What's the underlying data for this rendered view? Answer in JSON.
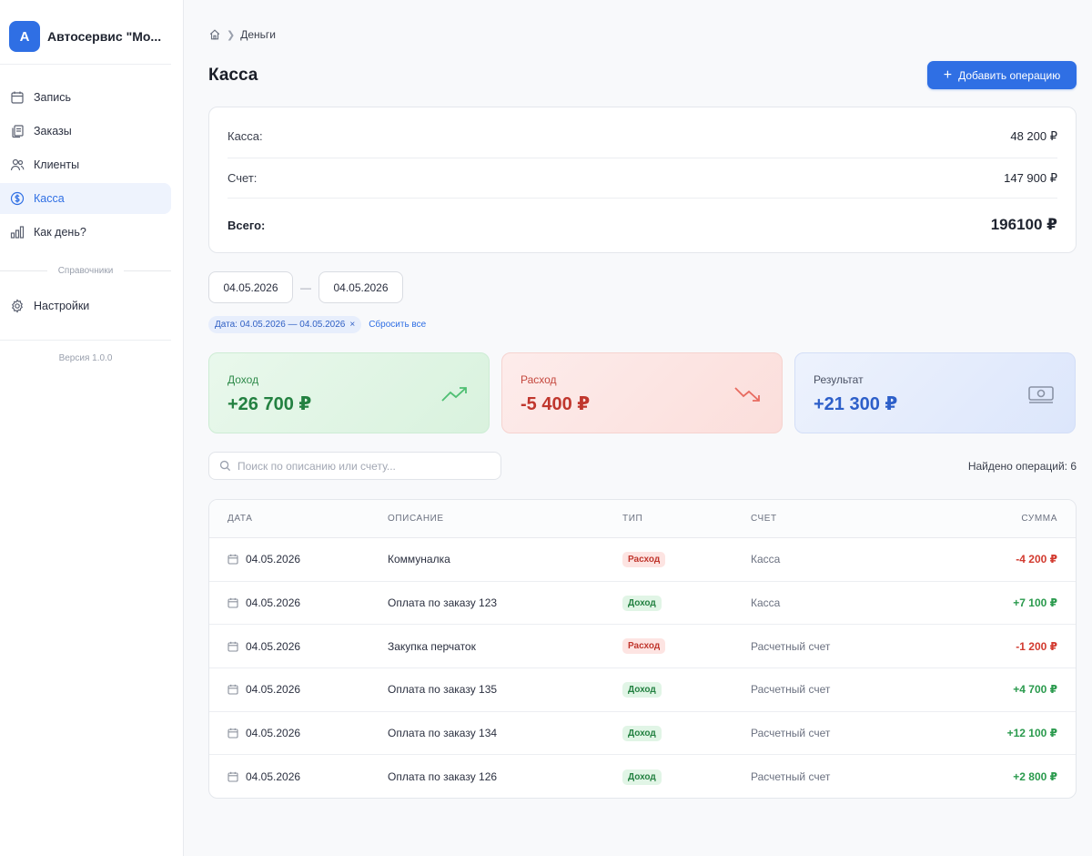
{
  "sidebar": {
    "logo_letter": "A",
    "company": "Автосервис \"Мо...",
    "items": [
      {
        "label": "Запись",
        "icon": "calendar-icon"
      },
      {
        "label": "Заказы",
        "icon": "documents-icon"
      },
      {
        "label": "Клиенты",
        "icon": "users-icon"
      },
      {
        "label": "Касса",
        "icon": "dollar-circle-icon",
        "active": true
      },
      {
        "label": "Как день?",
        "icon": "bar-chart-icon"
      }
    ],
    "section_label": "Справочники",
    "settings_label": "Настройки",
    "version": "Версия 1.0.0"
  },
  "breadcrumb": {
    "current": "Деньги"
  },
  "page": {
    "title": "Касса",
    "add_button": "Добавить операцию"
  },
  "balance": {
    "rows": [
      {
        "label": "Касса:",
        "value": "48 200 ₽"
      },
      {
        "label": "Счет:",
        "value": "147 900 ₽"
      },
      {
        "label": "Всего:",
        "value": "196100 ₽"
      }
    ]
  },
  "filters": {
    "date_from": "04.05.2026",
    "date_to": "04.05.2026",
    "dash": "—",
    "chip": "Дата: 04.05.2026 — 04.05.2026",
    "chip_close": "×",
    "reset": "Сбросить все"
  },
  "stats": {
    "income": {
      "label": "Доход",
      "value": "+26 700 ₽"
    },
    "expense": {
      "label": "Расход",
      "value": "-5 400 ₽"
    },
    "result": {
      "label": "Результат",
      "value": "+21 300 ₽"
    }
  },
  "search": {
    "placeholder": "Поиск по описанию или счету..."
  },
  "found": "Найдено операций: 6",
  "table": {
    "headers": [
      "ДАТА",
      "ОПИСАНИЕ",
      "ТИП",
      "СЧЕТ",
      "СУММА"
    ],
    "rows": [
      {
        "date": "04.05.2026",
        "desc": "Коммуналка",
        "type": "Расход",
        "account": "Касса",
        "amount": "-4 200 ₽"
      },
      {
        "date": "04.05.2026",
        "desc": "Оплата по заказу 123",
        "type": "Доход",
        "account": "Касса",
        "amount": "+7 100 ₽"
      },
      {
        "date": "04.05.2026",
        "desc": "Закупка перчаток",
        "type": "Расход",
        "account": "Расчетный счет",
        "amount": "-1 200 ₽"
      },
      {
        "date": "04.05.2026",
        "desc": "Оплата по заказу 135",
        "type": "Доход",
        "account": "Расчетный счет",
        "amount": "+4 700 ₽"
      },
      {
        "date": "04.05.2026",
        "desc": "Оплата по заказу 134",
        "type": "Доход",
        "account": "Расчетный счет",
        "amount": "+12 100 ₽"
      },
      {
        "date": "04.05.2026",
        "desc": "Оплата по заказу 126",
        "type": "Доход",
        "account": "Расчетный счет",
        "amount": "+2 800 ₽"
      }
    ]
  },
  "colors": {
    "accent": "#2f6fe4",
    "income": "#238141",
    "expense": "#c0362d"
  }
}
